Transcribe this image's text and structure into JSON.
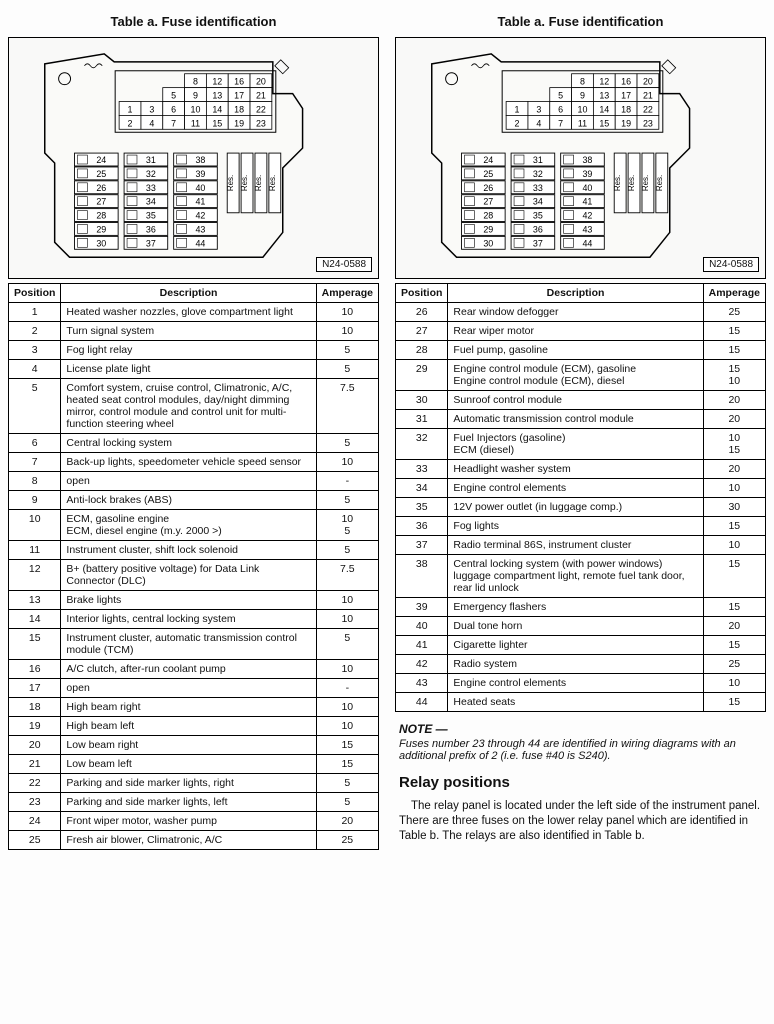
{
  "left": {
    "title": "Table a.  Fuse identification",
    "diagram_ref": "N24-0588",
    "headers": {
      "pos": "Position",
      "desc": "Description",
      "amp": "Amperage"
    },
    "rows": [
      {
        "pos": "1",
        "desc": "Heated washer nozzles, glove compartment light",
        "amp": "10"
      },
      {
        "pos": "2",
        "desc": "Turn signal system",
        "amp": "10"
      },
      {
        "pos": "3",
        "desc": "Fog light relay",
        "amp": "5"
      },
      {
        "pos": "4",
        "desc": "License plate light",
        "amp": "5"
      },
      {
        "pos": "5",
        "desc": "Comfort system, cruise control, Climatronic, A/C, heated seat control modules, day/night dimming mirror, control module and control unit for multi-function steering wheel",
        "amp": "7.5"
      },
      {
        "pos": "6",
        "desc": "Central locking system",
        "amp": "5"
      },
      {
        "pos": "7",
        "desc": "Back-up lights, speedometer vehicle speed sensor",
        "amp": "10"
      },
      {
        "pos": "8",
        "desc": "open",
        "amp": "-"
      },
      {
        "pos": "9",
        "desc": "Anti-lock brakes (ABS)",
        "amp": "5"
      },
      {
        "pos": "10",
        "desc": "ECM, gasoline engine\nECM, diesel engine (m.y. 2000 >)",
        "amp": "10\n5"
      },
      {
        "pos": "11",
        "desc": "Instrument cluster, shift lock solenoid",
        "amp": "5"
      },
      {
        "pos": "12",
        "desc": "B+ (battery positive voltage) for Data Link Connector (DLC)",
        "amp": "7.5"
      },
      {
        "pos": "13",
        "desc": "Brake lights",
        "amp": "10"
      },
      {
        "pos": "14",
        "desc": "Interior lights, central locking system",
        "amp": "10"
      },
      {
        "pos": "15",
        "desc": "Instrument cluster, automatic transmission control module (TCM)",
        "amp": "5"
      },
      {
        "pos": "16",
        "desc": "A/C clutch, after-run coolant pump",
        "amp": "10"
      },
      {
        "pos": "17",
        "desc": "open",
        "amp": "-"
      },
      {
        "pos": "18",
        "desc": "High beam right",
        "amp": "10"
      },
      {
        "pos": "19",
        "desc": "High beam left",
        "amp": "10"
      },
      {
        "pos": "20",
        "desc": "Low beam right",
        "amp": "15"
      },
      {
        "pos": "21",
        "desc": "Low beam left",
        "amp": "15"
      },
      {
        "pos": "22",
        "desc": "Parking and side marker lights, right",
        "amp": "5"
      },
      {
        "pos": "23",
        "desc": "Parking and side marker lights, left",
        "amp": "5"
      },
      {
        "pos": "24",
        "desc": "Front wiper motor, washer pump",
        "amp": "20"
      },
      {
        "pos": "25",
        "desc": "Fresh air blower, Climatronic, A/C",
        "amp": "25"
      }
    ]
  },
  "right": {
    "title": "Table a.  Fuse identification",
    "diagram_ref": "N24-0588",
    "headers": {
      "pos": "Position",
      "desc": "Description",
      "amp": "Amperage"
    },
    "rows": [
      {
        "pos": "26",
        "desc": "Rear window defogger",
        "amp": "25"
      },
      {
        "pos": "27",
        "desc": "Rear wiper motor",
        "amp": "15"
      },
      {
        "pos": "28",
        "desc": "Fuel pump, gasoline",
        "amp": "15"
      },
      {
        "pos": "29",
        "desc": "Engine control module (ECM), gasoline\nEngine control module (ECM), diesel",
        "amp": "15\n10"
      },
      {
        "pos": "30",
        "desc": "Sunroof control module",
        "amp": "20"
      },
      {
        "pos": "31",
        "desc": "Automatic transmission control module",
        "amp": "20"
      },
      {
        "pos": "32",
        "desc": "Fuel Injectors (gasoline)\nECM (diesel)",
        "amp": "10\n15"
      },
      {
        "pos": "33",
        "desc": "Headlight washer system",
        "amp": "20"
      },
      {
        "pos": "34",
        "desc": "Engine control elements",
        "amp": "10"
      },
      {
        "pos": "35",
        "desc": "12V power outlet (in luggage comp.)",
        "amp": "30"
      },
      {
        "pos": "36",
        "desc": "Fog lights",
        "amp": "15"
      },
      {
        "pos": "37",
        "desc": "Radio terminal 86S, instrument cluster",
        "amp": "10"
      },
      {
        "pos": "38",
        "desc": "Central locking system (with power windows) luggage compartment light, remote fuel tank door, rear lid unlock",
        "amp": "15"
      },
      {
        "pos": "39",
        "desc": "Emergency flashers",
        "amp": "15"
      },
      {
        "pos": "40",
        "desc": "Dual tone horn",
        "amp": "20"
      },
      {
        "pos": "41",
        "desc": "Cigarette lighter",
        "amp": "15"
      },
      {
        "pos": "42",
        "desc": "Radio system",
        "amp": "25"
      },
      {
        "pos": "43",
        "desc": "Engine control elements",
        "amp": "10"
      },
      {
        "pos": "44",
        "desc": "Heated seats",
        "amp": "15"
      }
    ],
    "note_head": "NOTE —",
    "note_body": "Fuses number 23 through 44 are identified in wiring diagrams with an additional prefix of 2 (i.e. fuse #40 is S240).",
    "section_title": "Relay positions",
    "para": "The relay panel is located under the left side of the instrument panel. There are three fuses on the lower relay panel which are identified in Table b. The relays are also identified in Table b."
  },
  "diagram": {
    "top_grid": {
      "row1": [
        "8",
        "12",
        "16",
        "20"
      ],
      "row2": [
        "5",
        "9",
        "13",
        "17",
        "21"
      ],
      "row3": [
        "1",
        "3",
        "6",
        "10",
        "14",
        "18",
        "22"
      ],
      "row4": [
        "2",
        "4",
        "7",
        "11",
        "15",
        "19",
        "23"
      ]
    },
    "bottom_cols": [
      [
        "24",
        "25",
        "26",
        "27",
        "28",
        "29",
        "30"
      ],
      [
        "31",
        "32",
        "33",
        "34",
        "35",
        "36",
        "37"
      ],
      [
        "38",
        "39",
        "40",
        "41",
        "42",
        "43",
        "44"
      ]
    ],
    "res_labels": [
      "Res.",
      "Res.",
      "Res.",
      "Res."
    ]
  },
  "colors": {
    "line": "#000000",
    "bg": "#f9f9f8",
    "text": "#111111"
  }
}
